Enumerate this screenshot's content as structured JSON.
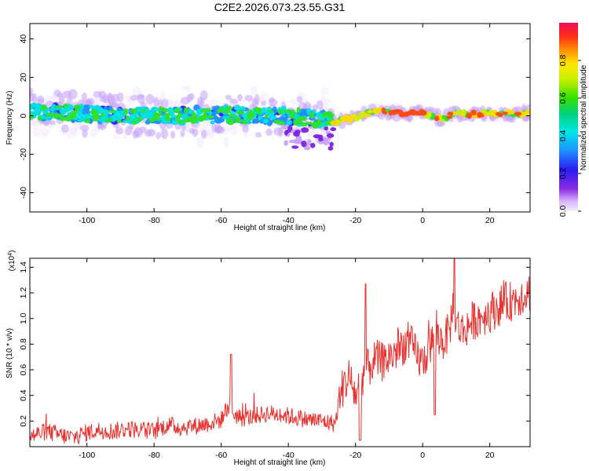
{
  "page_title": "C2E2.2026.073.23.55.G31",
  "chart_data": [
    {
      "type": "heatmap",
      "title": "C2E2.2026.073.23.55.G31",
      "xlabel": "Height of straight line (km)",
      "ylabel": "Frequency (Hz)",
      "xlim": [
        -117,
        32
      ],
      "ylim": [
        -50,
        48
      ],
      "xticks": [
        -100,
        -80,
        -60,
        -40,
        -20,
        0,
        20
      ],
      "yticks": [
        -40,
        -20,
        0,
        20,
        40
      ],
      "grid": false,
      "colorbar": {
        "label": "Normalized spectral amplitude",
        "range": [
          0,
          1
        ],
        "ticks": [
          "0.0",
          "0.2",
          "0.4",
          "0.6",
          "0.8"
        ],
        "colormap": "rainbow (white-violet to magenta-red)"
      },
      "ridge_center_hz": {
        "x": [
          -117,
          -100,
          -80,
          -60,
          -40,
          -30,
          -26,
          -20,
          -14,
          -10,
          -5,
          0,
          3,
          6,
          9,
          15,
          25,
          32
        ],
        "y": [
          2,
          1,
          0,
          0.5,
          0,
          -2,
          -3,
          -1,
          3,
          2,
          1,
          2,
          0,
          -2,
          1,
          1,
          1,
          1
        ]
      }
    },
    {
      "type": "line",
      "xlabel": "Height of straight line (km)",
      "ylabel": "SNR (10 * v/v)",
      "y_multiplier": "(x10^4)",
      "xlim": [
        -117,
        32
      ],
      "ylim": [
        0,
        1.47
      ],
      "xticks": [
        -100,
        -80,
        -60,
        -40,
        -20,
        0,
        20
      ],
      "yticks": [
        "0.2",
        "0.4",
        "0.6",
        "0.8",
        "1.0",
        "1.2",
        "1.4"
      ],
      "color": "#e8312e",
      "series": [
        {
          "x": [
            -117,
            -112,
            -108,
            -104,
            -100,
            -96,
            -92,
            -88,
            -84,
            -80,
            -76,
            -72,
            -68,
            -64,
            -60,
            -58,
            -56,
            -54,
            -50,
            -46,
            -42,
            -38,
            -34,
            -30,
            -26,
            -25,
            -24,
            -22,
            -20,
            -18,
            -16,
            -14,
            -12,
            -10,
            -8,
            -6,
            -4,
            -2,
            0,
            2,
            4,
            6,
            8,
            9,
            10,
            12,
            14,
            16,
            18,
            20,
            22,
            24,
            26,
            28,
            30,
            32
          ],
          "y": [
            0.08,
            0.12,
            0.09,
            0.07,
            0.11,
            0.13,
            0.12,
            0.14,
            0.13,
            0.12,
            0.17,
            0.15,
            0.16,
            0.18,
            0.21,
            0.32,
            0.25,
            0.22,
            0.24,
            0.26,
            0.25,
            0.23,
            0.21,
            0.2,
            0.18,
            0.35,
            0.45,
            0.55,
            0.4,
            0.55,
            0.62,
            0.68,
            0.66,
            0.7,
            0.74,
            0.79,
            0.82,
            0.72,
            0.65,
            0.78,
            0.86,
            0.82,
            0.9,
            1.1,
            0.95,
            0.9,
            0.96,
            1.0,
            1.02,
            1.05,
            1.08,
            1.12,
            1.13,
            1.16,
            1.19,
            1.21
          ]
        }
      ]
    }
  ]
}
